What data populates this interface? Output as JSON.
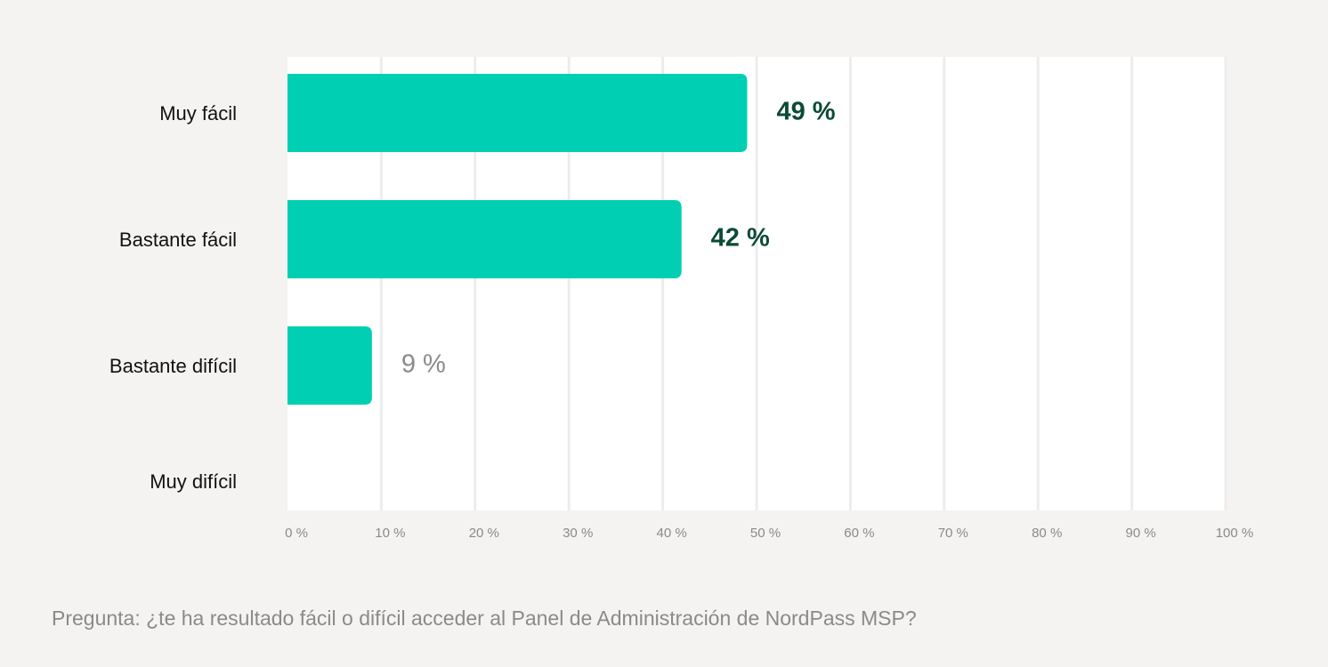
{
  "chart_data": {
    "type": "hbar",
    "categories": [
      "Muy fácil",
      "Bastante fácil",
      "Bastante difícil",
      "Muy difícil"
    ],
    "values": [
      49,
      42,
      9,
      0
    ],
    "value_labels": [
      "49 %",
      "42 %",
      "9 %",
      null
    ],
    "value_label_colors": [
      "#0b4a36",
      "#0b4a36",
      "#8a8a8a",
      null
    ],
    "color": "#00cfb4",
    "xlim": [
      0,
      100
    ],
    "xticks": [
      {
        "value": 0,
        "label": "0 %"
      },
      {
        "value": 10,
        "label": "10 %"
      },
      {
        "value": 20,
        "label": "20 %"
      },
      {
        "value": 30,
        "label": "30 %"
      },
      {
        "value": 40,
        "label": "40 %"
      },
      {
        "value": 50,
        "label": "50 %"
      },
      {
        "value": 60,
        "label": "60 %"
      },
      {
        "value": 70,
        "label": "70 %"
      },
      {
        "value": 80,
        "label": "80 %"
      },
      {
        "value": 90,
        "label": "90 %"
      },
      {
        "value": 100,
        "label": "100 %"
      }
    ],
    "grid": true,
    "footnote": "Pregunta: ¿te ha resultado fácil o difícil acceder al Panel de Administración de NordPass MSP?"
  }
}
